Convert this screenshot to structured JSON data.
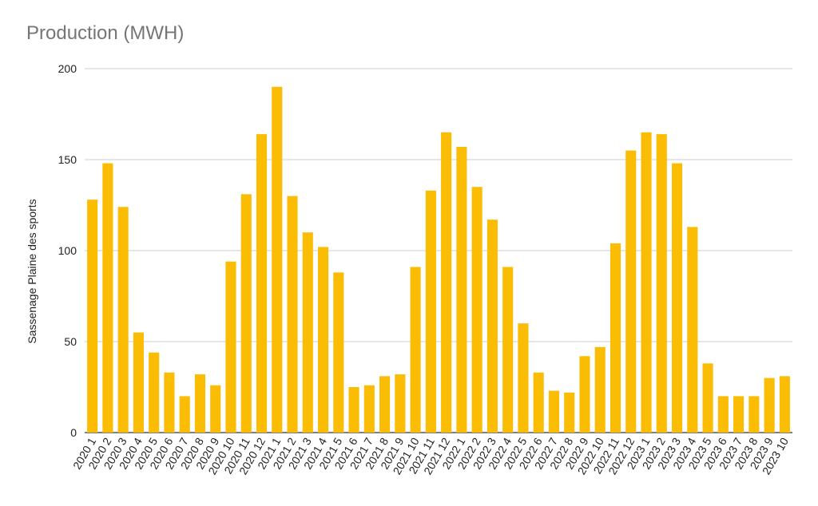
{
  "chart_data": {
    "type": "bar",
    "title": "Production (MWH)",
    "xlabel": "",
    "ylabel": "Sassenage Plaine des sports",
    "ylim": [
      0,
      200
    ],
    "yticks": [
      0,
      50,
      100,
      150,
      200
    ],
    "grid": true,
    "bar_color": "#fbbc04",
    "categories": [
      "2020 1",
      "2020 2",
      "2020 3",
      "2020 4",
      "2020 5",
      "2020 6",
      "2020 7",
      "2020 8",
      "2020 9",
      "2020 10",
      "2020 11",
      "2020 12",
      "2021 1",
      "2021 2",
      "2021 3",
      "2021 4",
      "2021 5",
      "2021 6",
      "2021 7",
      "2021 8",
      "2021 9",
      "2021 10",
      "2021 11",
      "2021 12",
      "2022 1",
      "2022 2",
      "2022 3",
      "2022 4",
      "2022 5",
      "2022 6",
      "2022 7",
      "2022 8",
      "2022 9",
      "2022 10",
      "2022 11",
      "2022 12",
      "2023 1",
      "2023 2",
      "2023 3",
      "2023 4",
      "2023 5",
      "2023 6",
      "2023 7",
      "2023 8",
      "2023 9",
      "2023 10"
    ],
    "values": [
      128,
      148,
      124,
      55,
      44,
      33,
      20,
      32,
      26,
      94,
      131,
      164,
      190,
      130,
      110,
      102,
      88,
      25,
      26,
      31,
      32,
      91,
      133,
      165,
      157,
      135,
      117,
      91,
      60,
      33,
      23,
      22,
      42,
      47,
      104,
      155,
      165,
      164,
      148,
      113,
      38,
      20,
      20,
      20,
      30,
      31
    ]
  }
}
